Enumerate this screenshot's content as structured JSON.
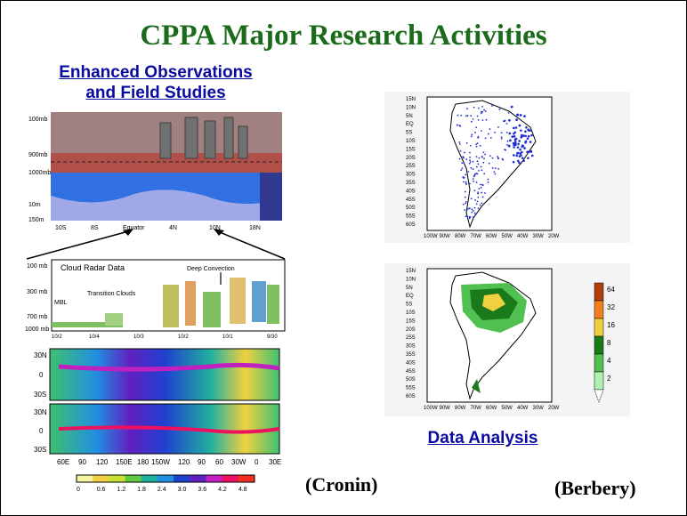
{
  "slide": {
    "title": "CPPA Major Research Activities",
    "left_heading_line1": "Enhanced Observations",
    "left_heading_line2": "and Field Studies",
    "right_heading": "Data Analysis",
    "credit_left": "(Cronin)",
    "credit_right": "(Berbery)"
  },
  "cross_section": {
    "y_labels": [
      "100mb",
      "900mb",
      "1000mb",
      "10m",
      "150m"
    ],
    "x_labels": [
      "10S",
      "8S",
      "Equator",
      "4N",
      "10N",
      "18N"
    ]
  },
  "cloud_radar": {
    "title": "Cloud Radar Data",
    "annotations": [
      "Deep Convection",
      "Transition Clouds",
      "MBL"
    ],
    "y_labels": [
      "100 mb",
      "300 mb",
      "700 mb",
      "1000 mb"
    ],
    "x_labels": [
      "10/2",
      "10/4",
      "10/3",
      "10/2",
      "10/1",
      "9/30"
    ]
  },
  "global_maps": {
    "lat_labels_top": [
      "30N",
      "0",
      "30S"
    ],
    "lat_labels_bottom": [
      "30N",
      "0",
      "30S"
    ],
    "lon_labels": [
      "60E",
      "90",
      "120",
      "150E",
      "180",
      "150W",
      "120",
      "90",
      "60",
      "30W",
      "0",
      "30E"
    ],
    "colorbar_labels": [
      "0",
      "0.6",
      "1.2",
      "1.8",
      "2.4",
      "3.0",
      "3.6",
      "4.2",
      "4.8"
    ],
    "colorbar_colors": [
      "#f5f5a0",
      "#f0d040",
      "#c8e030",
      "#60c840",
      "#20b0a0",
      "#2090e0",
      "#2040d0",
      "#6020c0",
      "#c020c0",
      "#f01060",
      "#f03020"
    ]
  },
  "station_map": {
    "lat_labels": [
      "15N",
      "10N",
      "5N",
      "EQ",
      "5S",
      "10S",
      "15S",
      "20S",
      "25S",
      "30S",
      "35S",
      "40S",
      "45S",
      "50S",
      "55S",
      "60S"
    ],
    "lon_labels": [
      "100W",
      "90W",
      "80W",
      "70W",
      "60W",
      "50W",
      "40W",
      "30W",
      "20W"
    ]
  },
  "precip_map": {
    "lat_labels": [
      "15N",
      "10N",
      "5N",
      "EQ",
      "5S",
      "10S",
      "15S",
      "20S",
      "25S",
      "30S",
      "35S",
      "40S",
      "45S",
      "50S",
      "55S",
      "60S"
    ],
    "lon_labels": [
      "100W",
      "90W",
      "80W",
      "70W",
      "60W",
      "50W",
      "40W",
      "30W",
      "20W"
    ],
    "legend_labels": [
      "64",
      "32",
      "16",
      "8",
      "4",
      "2"
    ],
    "legend_colors": [
      "#b04010",
      "#f08020",
      "#f0d040",
      "#1a7a1a",
      "#50c050",
      "#b0f0b0"
    ]
  }
}
